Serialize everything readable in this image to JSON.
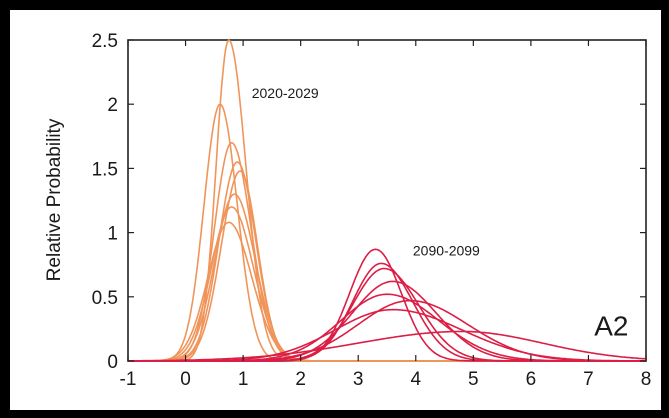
{
  "chart_data": {
    "type": "line",
    "title": "",
    "xlabel": "",
    "ylabel": "Relative Probability",
    "xlim": [
      -1,
      8
    ],
    "ylim": [
      0,
      2.5
    ],
    "xticks": [
      "-1",
      "0",
      "1",
      "2",
      "3",
      "4",
      "5",
      "6",
      "7",
      "8"
    ],
    "yticks": [
      "0",
      "0.5",
      "1",
      "1.5",
      "2",
      "2.5"
    ],
    "grid": false,
    "legend": "none",
    "annotations": [
      {
        "text": "2020-2029",
        "x": 1.15,
        "y": 2.05
      },
      {
        "text": "2090-2099",
        "x": 3.95,
        "y": 0.82
      },
      {
        "text": "A2",
        "x": 7.1,
        "y": 0.2
      }
    ],
    "series_groups": [
      {
        "label": "2020-2029",
        "color": "#f0955a",
        "curves": [
          {
            "peak_x": 0.6,
            "peak_y": 2.0,
            "sd_left": 0.28,
            "sd_right": 0.3
          },
          {
            "peak_x": 0.75,
            "peak_y": 2.5,
            "sd_left": 0.22,
            "sd_right": 0.3
          },
          {
            "peak_x": 0.8,
            "peak_y": 1.7,
            "sd_left": 0.3,
            "sd_right": 0.34
          },
          {
            "peak_x": 0.9,
            "peak_y": 1.55,
            "sd_left": 0.32,
            "sd_right": 0.32
          },
          {
            "peak_x": 0.95,
            "peak_y": 1.48,
            "sd_left": 0.33,
            "sd_right": 0.3
          },
          {
            "peak_x": 0.85,
            "peak_y": 1.3,
            "sd_left": 0.34,
            "sd_right": 0.36
          },
          {
            "peak_x": 0.8,
            "peak_y": 1.2,
            "sd_left": 0.35,
            "sd_right": 0.38
          },
          {
            "peak_x": 0.75,
            "peak_y": 1.08,
            "sd_left": 0.36,
            "sd_right": 0.4
          }
        ]
      },
      {
        "label": "2090-2099",
        "color": "#dc1e46",
        "curves": [
          {
            "peak_x": 3.3,
            "peak_y": 0.87,
            "sd_left": 0.45,
            "sd_right": 0.45
          },
          {
            "peak_x": 3.4,
            "peak_y": 0.76,
            "sd_left": 0.5,
            "sd_right": 0.55
          },
          {
            "peak_x": 3.45,
            "peak_y": 0.72,
            "sd_left": 0.55,
            "sd_right": 0.6
          },
          {
            "peak_x": 3.6,
            "peak_y": 0.62,
            "sd_left": 0.7,
            "sd_right": 0.75
          },
          {
            "peak_x": 3.5,
            "peak_y": 0.52,
            "sd_left": 0.8,
            "sd_right": 0.9
          },
          {
            "peak_x": 3.9,
            "peak_y": 0.47,
            "sd_left": 0.9,
            "sd_right": 1.0
          },
          {
            "peak_x": 3.6,
            "peak_y": 0.4,
            "sd_left": 1.0,
            "sd_right": 1.2
          },
          {
            "peak_x": 4.8,
            "peak_y": 0.23,
            "sd_left": 1.8,
            "sd_right": 1.4
          }
        ]
      }
    ]
  }
}
